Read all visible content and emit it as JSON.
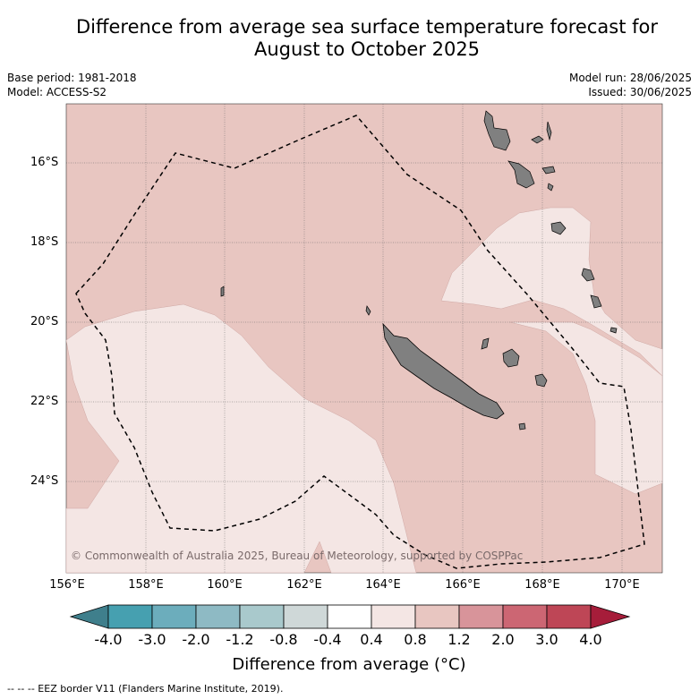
{
  "title_line1": "Difference from average sea surface temperature forecast for",
  "title_line2": "August to October 2025",
  "base_period": "Base period: 1981-2018",
  "model": "Model: ACCESS-S2",
  "model_run": "Model run: 28/06/2025",
  "issued": "Issued: 30/06/2025",
  "lat_ticks": [
    "16°S",
    "18°S",
    "20°S",
    "22°S",
    "24°S"
  ],
  "lon_ticks": [
    "156°E",
    "158°E",
    "160°E",
    "162°E",
    "164°E",
    "166°E",
    "168°E",
    "170°E"
  ],
  "copyright": "© Commonwealth of Australia 2025, Bureau of Meteorology, supported by COSPPac",
  "colorbar": {
    "ticks": [
      "-4.0",
      "-3.0",
      "-2.0",
      "-1.2",
      "-0.8",
      "-0.4",
      "0.4",
      "0.8",
      "1.2",
      "2.0",
      "3.0",
      "4.0"
    ],
    "colors": [
      "#3f7f8c",
      "#46a0b0",
      "#6cadbc",
      "#8ebac4",
      "#a9c9cc",
      "#cfd8d8",
      "#ffffff",
      "#f4e6e4",
      "#e8c6c1",
      "#d8949a",
      "#cc6673",
      "#be4656",
      "#a61d3a"
    ],
    "label": "Difference from average (°C)"
  },
  "map_colors": {
    "anomaly_0.8_1.2": "#e8c6c1",
    "anomaly_0.4_0.8": "#f4e6e4",
    "land": "#808080"
  },
  "footer": "-- -- -- EEZ border V11 (Flanders Marine Institute, 2019)."
}
